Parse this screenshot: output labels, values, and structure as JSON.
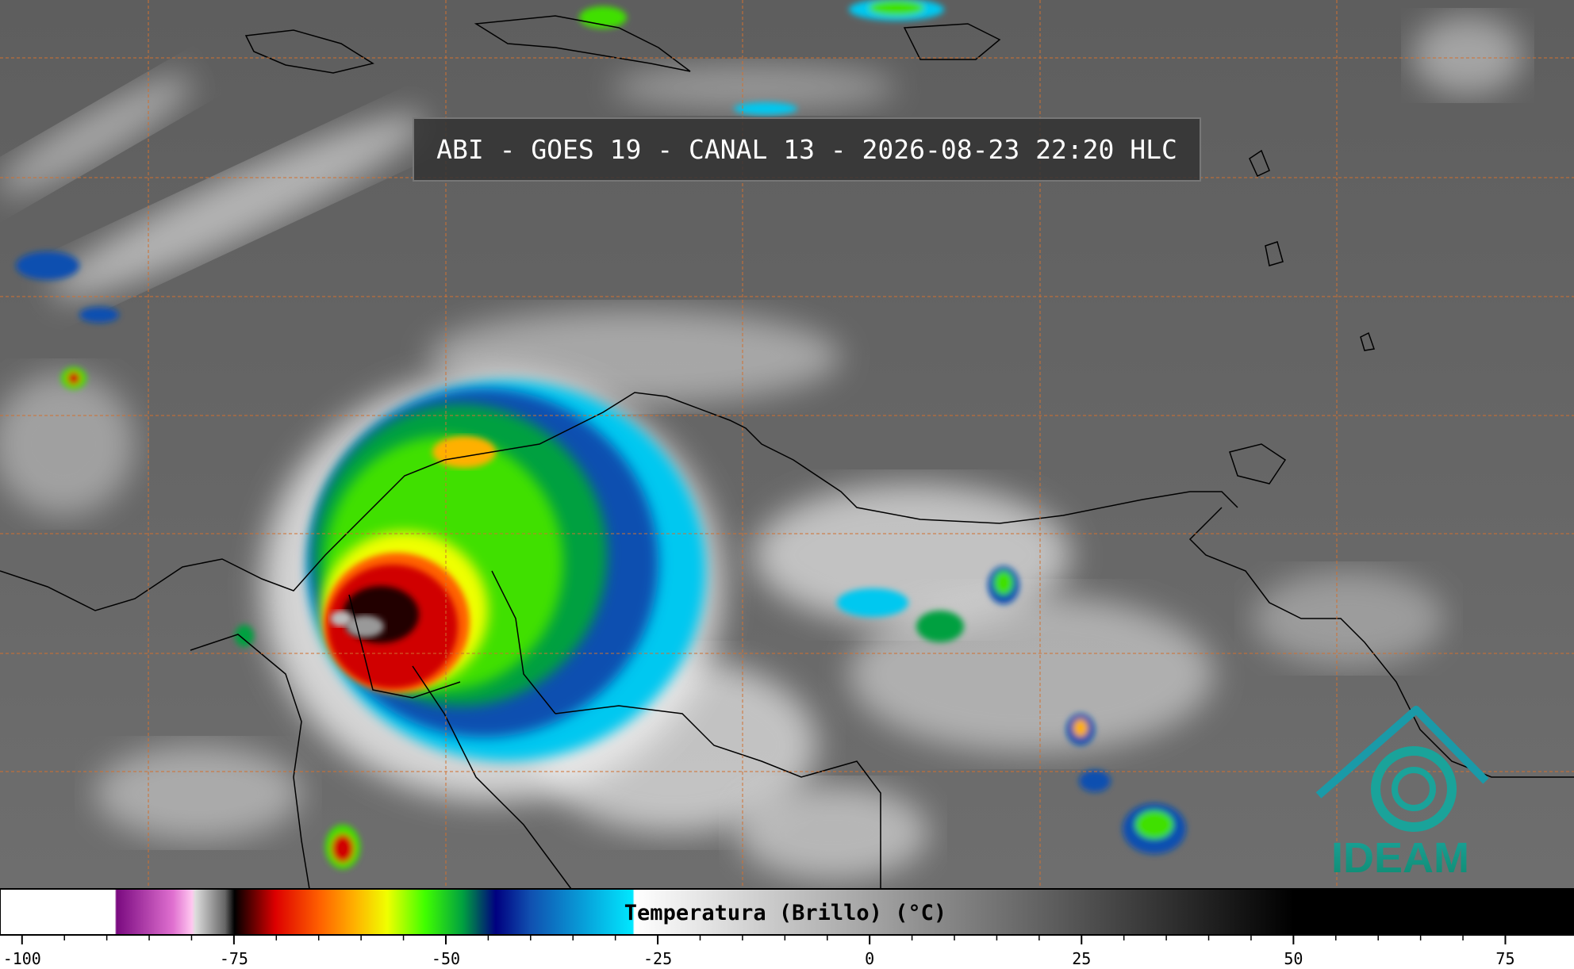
{
  "title": "ABI - GOES 19 - CANAL 13 - 2026-08-23 22:20 HLC",
  "colorbar": {
    "label": "Temperatura (Brillo) (°C)",
    "range": [
      -102.6,
      83.1
    ],
    "ticks": [
      -100,
      -75,
      -50,
      -25,
      0,
      25,
      50,
      75
    ]
  },
  "logo": {
    "text": "IDEAM"
  }
}
